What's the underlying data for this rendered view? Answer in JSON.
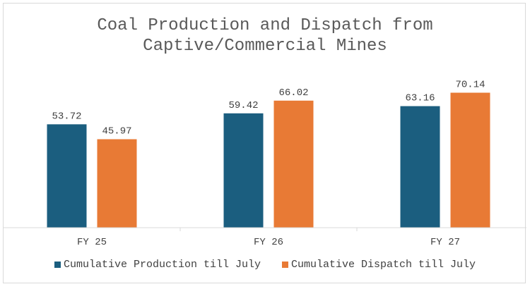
{
  "chart_data": {
    "type": "bar",
    "title": "Coal Production and Dispatch from\nCaptive/Commercial Mines",
    "categories": [
      "FY 25",
      "FY 26",
      "FY 27"
    ],
    "series": [
      {
        "name": "Cumulative Production till July",
        "values": [
          53.72,
          59.42,
          63.16
        ],
        "color": "#1b5e7f"
      },
      {
        "name": "Cumulative Dispatch till July",
        "values": [
          45.97,
          66.02,
          70.14
        ],
        "color": "#e87a35"
      }
    ],
    "ylim": [
      0,
      80
    ],
    "grid": false,
    "legend": "bottom"
  }
}
